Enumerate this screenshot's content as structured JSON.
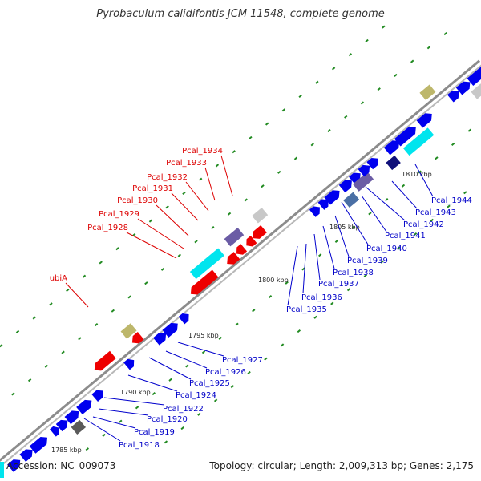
{
  "title": "Pyrobaculum calidifontis JCM 11548, complete genome",
  "footer": {
    "accession": "Accession: NC_009073",
    "topology": "Topology: circular; Length: 2,009,313 bp; Genes: 2,175"
  },
  "colors": {
    "backbone": "#8c8c8c",
    "forward_gene": "#0000ee",
    "reverse_gene": "#ee0000",
    "rna": "#00e5ee",
    "pseudo": "#bdb76b",
    "other": "#6b5ca5",
    "label_forward": "#0000c8",
    "label_reverse": "#dd0000",
    "tick": "#228b22"
  },
  "scale_labels": [
    "1785 kbp",
    "1790 kbp",
    "1795 kbp",
    "1800 kbp",
    "1805 kbp",
    "1810 kbp"
  ],
  "forward_labels": [
    "Pcal_1918",
    "Pcal_1919",
    "Pcal_1920",
    "Pcal_1922",
    "Pcal_1924",
    "Pcal_1925",
    "Pcal_1926",
    "Pcal_1927",
    "Pcal_1935",
    "Pcal_1936",
    "Pcal_1937",
    "Pcal_1938",
    "Pcal_1939",
    "Pcal_1940",
    "Pcal_1941",
    "Pcal_1942",
    "Pcal_1943",
    "Pcal_1944"
  ],
  "reverse_labels": [
    "ubiA",
    "Pcal_1928",
    "Pcal_1929",
    "Pcal_1930",
    "Pcal_1931",
    "Pcal_1932",
    "Pcal_1933",
    "Pcal_1934"
  ]
}
